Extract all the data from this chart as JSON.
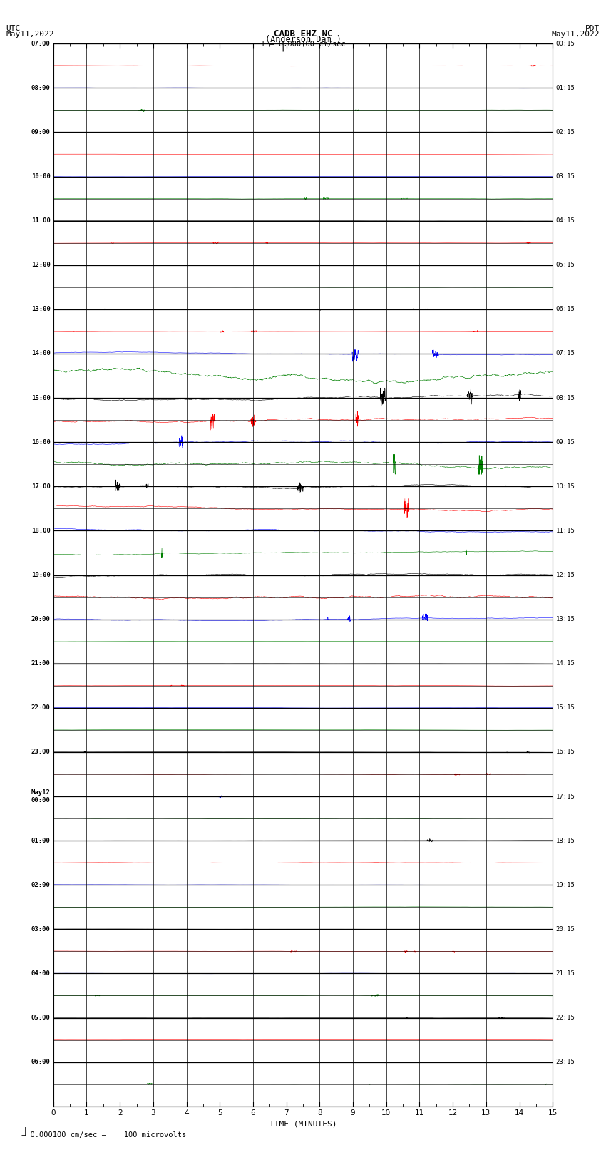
{
  "title_line1": "CADB EHZ NC",
  "title_line2": "(Anderson Dam )",
  "title_line3": "I = 0.000100 cm/sec",
  "label_left_top": "UTC",
  "label_left_date": "May11,2022",
  "label_right_top": "PDT",
  "label_right_date": "May11,2022",
  "xlabel": "TIME (MINUTES)",
  "footnote": "= 0.000100 cm/sec =    100 microvolts",
  "x_ticks": [
    0,
    1,
    2,
    3,
    4,
    5,
    6,
    7,
    8,
    9,
    10,
    11,
    12,
    13,
    14,
    15
  ],
  "left_labels_utc": [
    "07:00",
    "",
    "08:00",
    "",
    "09:00",
    "",
    "10:00",
    "",
    "11:00",
    "",
    "12:00",
    "",
    "13:00",
    "",
    "14:00",
    "",
    "15:00",
    "",
    "16:00",
    "",
    "17:00",
    "",
    "18:00",
    "",
    "19:00",
    "",
    "20:00",
    "",
    "21:00",
    "",
    "22:00",
    "",
    "23:00",
    "",
    "May12\n00:00",
    "",
    "01:00",
    "",
    "02:00",
    "",
    "03:00",
    "",
    "04:00",
    "",
    "05:00",
    "",
    "06:00",
    ""
  ],
  "right_labels_pdt": [
    "00:15",
    "",
    "01:15",
    "",
    "02:15",
    "",
    "03:15",
    "",
    "04:15",
    "",
    "05:15",
    "",
    "06:15",
    "",
    "07:15",
    "",
    "08:15",
    "",
    "09:15",
    "",
    "10:15",
    "",
    "11:15",
    "",
    "12:15",
    "",
    "13:15",
    "",
    "14:15",
    "",
    "15:15",
    "",
    "16:15",
    "",
    "17:15",
    "",
    "18:15",
    "",
    "19:15",
    "",
    "20:15",
    "",
    "21:15",
    "",
    "22:15",
    "",
    "23:15",
    ""
  ],
  "trace_colors_cycle": [
    "black",
    "red",
    "blue",
    "green"
  ],
  "bg_color": "#ffffff",
  "fig_width": 8.5,
  "fig_height": 16.13,
  "dpi": 100,
  "num_rows": 48,
  "x_min": 0,
  "x_max": 15,
  "base_noise": 0.006,
  "high_noise_rows": [
    14,
    15,
    16,
    17,
    18,
    19,
    20,
    21,
    22,
    23,
    24,
    25,
    26
  ],
  "high_noise_amps": [
    0.04,
    0.18,
    0.08,
    0.06,
    0.05,
    0.09,
    0.04,
    0.07,
    0.04,
    0.05,
    0.04,
    0.04,
    0.04
  ]
}
